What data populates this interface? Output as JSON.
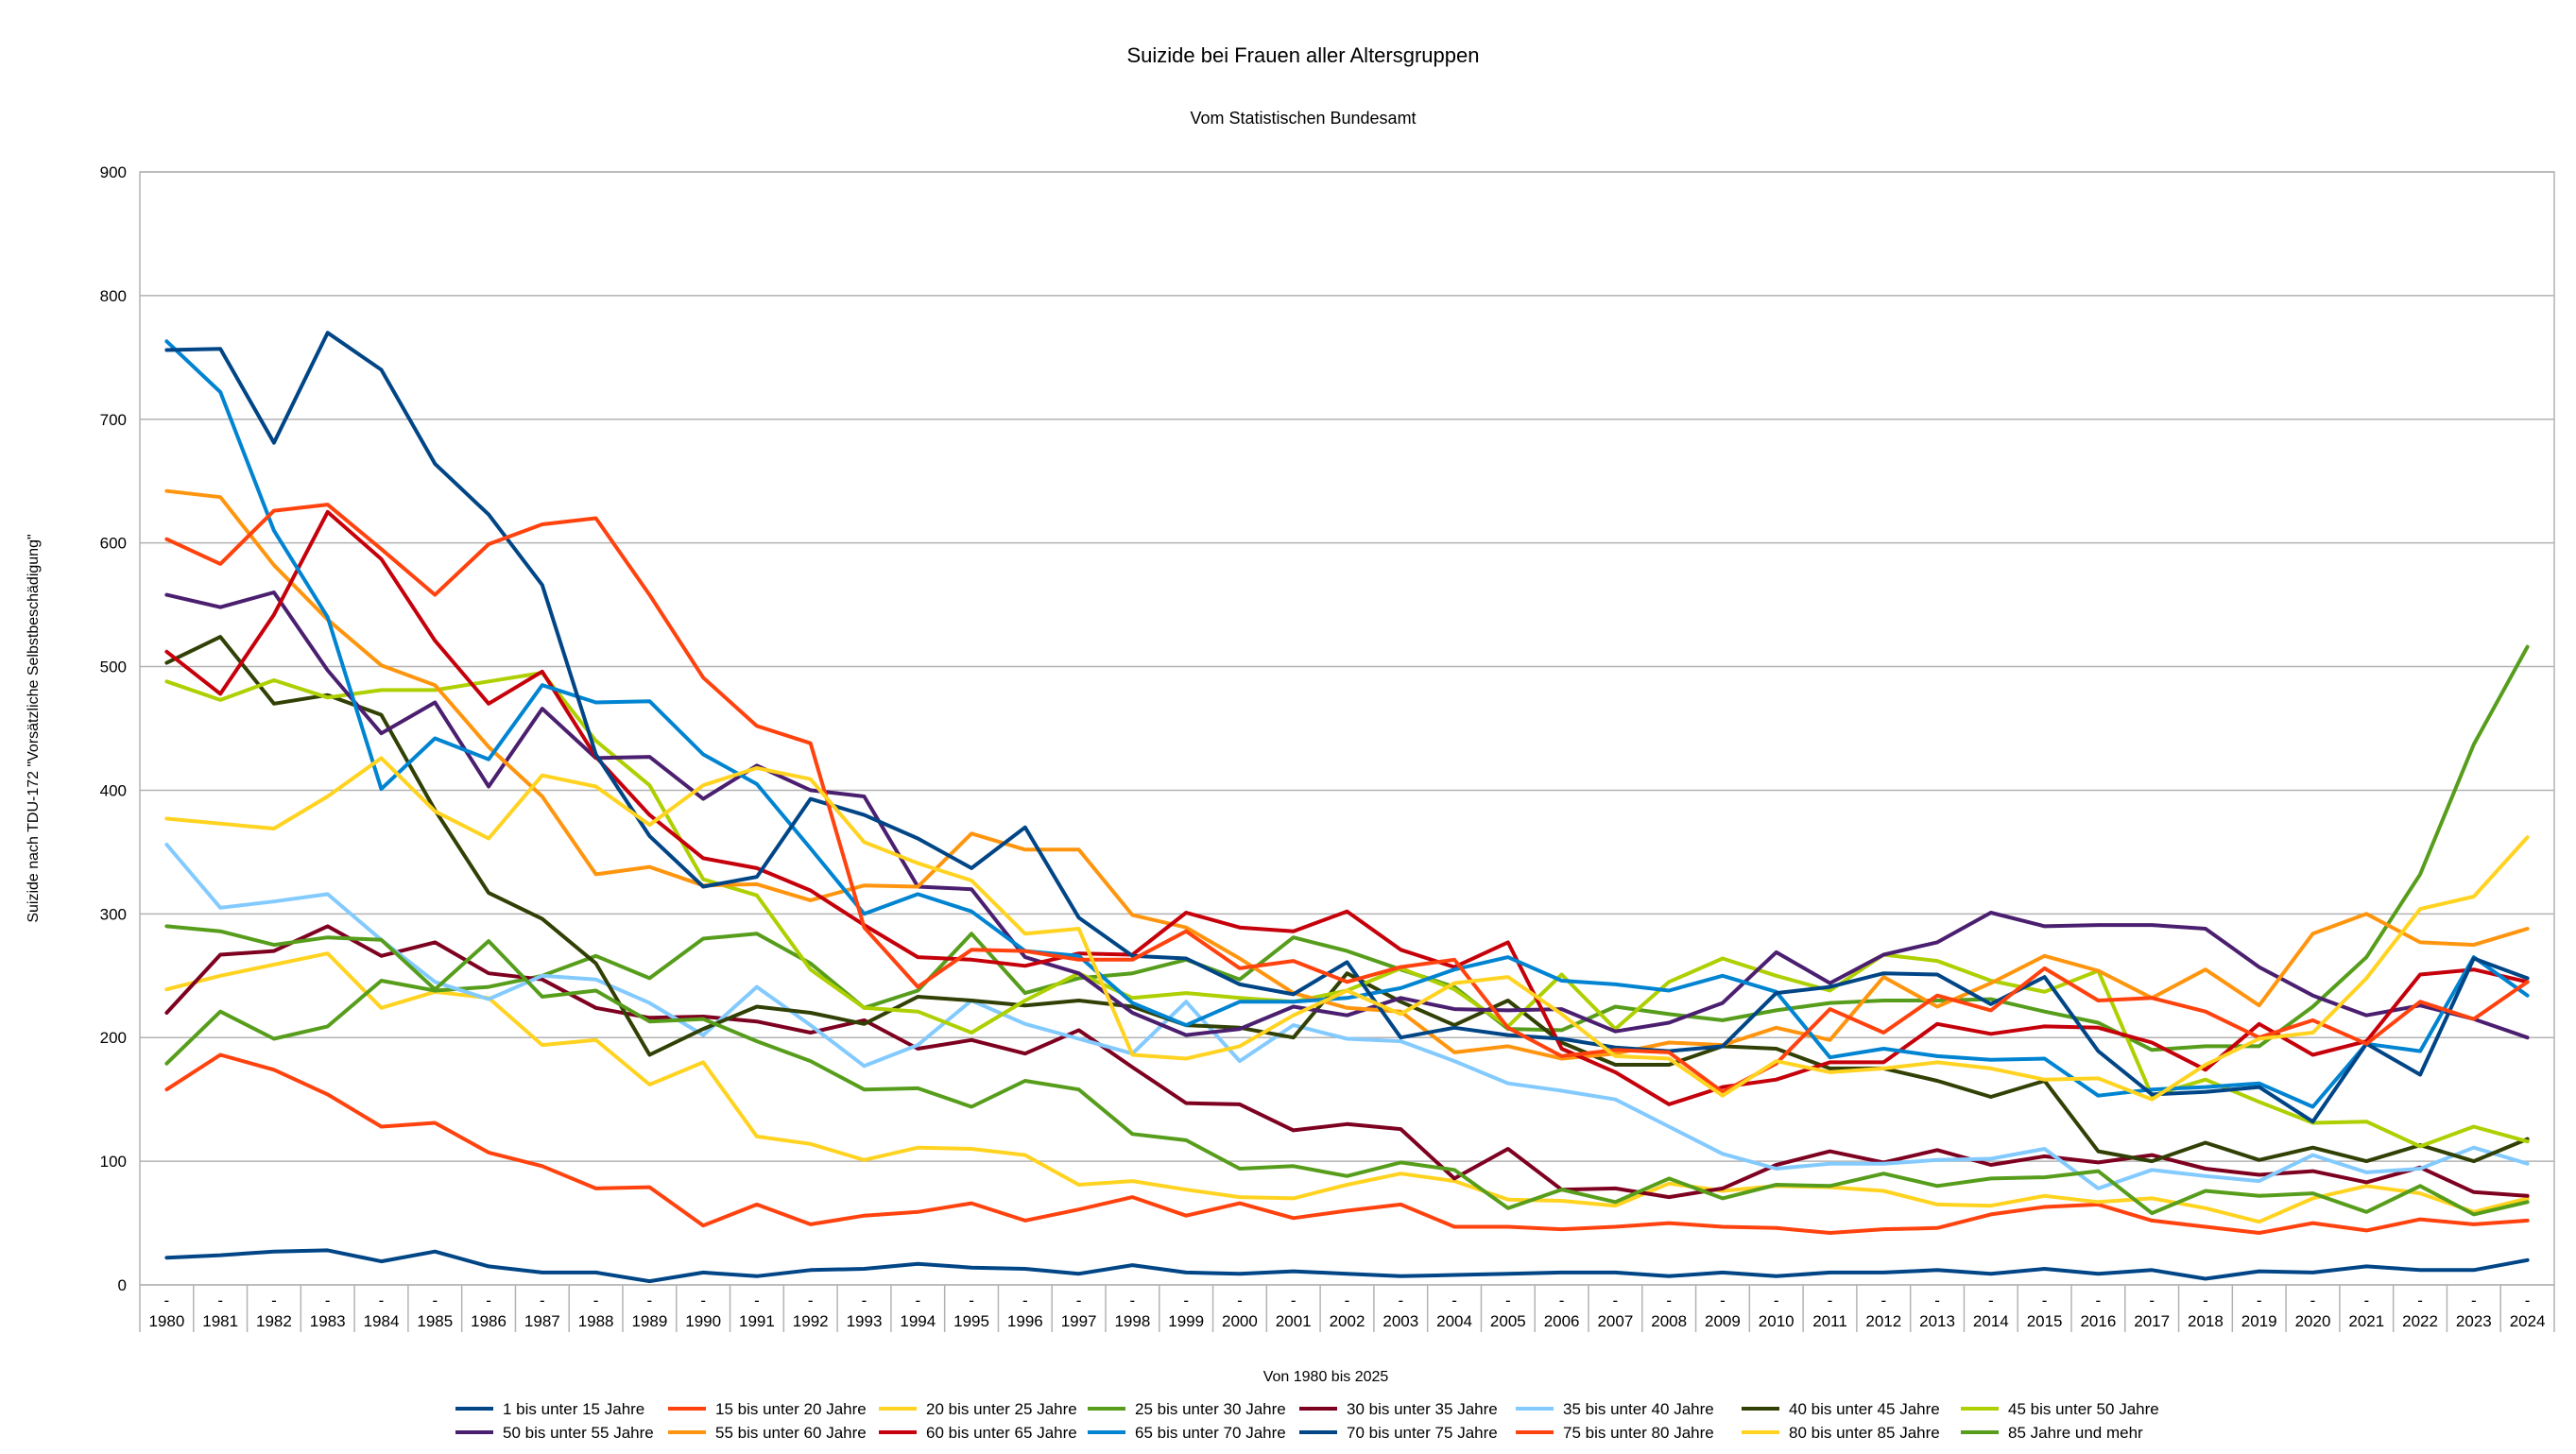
{
  "chart_data": {
    "type": "line",
    "title": "Suizide bei Frauen aller Altersgruppen",
    "subtitle": "Vom Statistischen Bundesamt",
    "xlabel": "Von 1980 bis 2025",
    "ylabel": "Suizide nach TDU-172 \"Vorsätzliche Selbstbeschädigung\"",
    "ylim": [
      0,
      900
    ],
    "yticks": [
      "0",
      "100",
      "200",
      "300",
      "400",
      "500",
      "600",
      "700",
      "800",
      "900"
    ],
    "grid": true,
    "legend": "bottom",
    "categories": [
      "1980",
      "1981",
      "1982",
      "1983",
      "1984",
      "1985",
      "1986",
      "1987",
      "1988",
      "1989",
      "1990",
      "1991",
      "1992",
      "1993",
      "1994",
      "1995",
      "1996",
      "1997",
      "1998",
      "1999",
      "2000",
      "2001",
      "2002",
      "2003",
      "2004",
      "2005",
      "2006",
      "2007",
      "2008",
      "2009",
      "2010",
      "2011",
      "2012",
      "2013",
      "2014",
      "2015",
      "2016",
      "2017",
      "2018",
      "2019",
      "2020",
      "2021",
      "2022",
      "2023",
      "2024"
    ],
    "category_marker": "-",
    "series": [
      {
        "name": "1 bis unter 15 Jahre",
        "color": "#004586",
        "values": [
          22,
          24,
          27,
          28,
          19,
          27,
          15,
          10,
          10,
          3,
          10,
          7,
          12,
          13,
          17,
          14,
          13,
          9,
          16,
          10,
          9,
          11,
          9,
          7,
          8,
          9,
          10,
          10,
          7,
          10,
          7,
          10,
          10,
          12,
          9,
          13,
          9,
          12,
          5,
          11,
          10,
          15,
          12,
          12,
          20
        ]
      },
      {
        "name": "15 bis unter 20 Jahre",
        "color": "#ff420e",
        "values": [
          158,
          186,
          174,
          154,
          128,
          131,
          107,
          96,
          78,
          79,
          48,
          65,
          49,
          56,
          59,
          66,
          52,
          61,
          71,
          56,
          66,
          54,
          60,
          65,
          47,
          47,
          45,
          47,
          50,
          47,
          46,
          42,
          45,
          46,
          57,
          63,
          65,
          52,
          47,
          42,
          50,
          44,
          53,
          49,
          52
        ]
      },
      {
        "name": "20 bis unter 25 Jahre",
        "color": "#ffd320",
        "values": [
          239,
          250,
          259,
          268,
          224,
          237,
          232,
          194,
          198,
          162,
          180,
          120,
          114,
          101,
          111,
          110,
          105,
          81,
          84,
          77,
          71,
          70,
          81,
          90,
          84,
          69,
          68,
          64,
          82,
          76,
          80,
          79,
          76,
          65,
          64,
          72,
          67,
          70,
          62,
          51,
          70,
          80,
          74,
          59,
          70
        ]
      },
      {
        "name": "25 bis unter 30 Jahre",
        "color": "#579d1c",
        "values": [
          179,
          221,
          199,
          209,
          246,
          238,
          241,
          250,
          266,
          248,
          280,
          284,
          260,
          224,
          238,
          284,
          236,
          248,
          252,
          263,
          247,
          281,
          270,
          255,
          241,
          207,
          206,
          225,
          219,
          214,
          222,
          228,
          230,
          230,
          231,
          221,
          212,
          190,
          193,
          193,
          225,
          265,
          332,
          437,
          516
        ]
      },
      {
        "name": "30 bis unter 35 Jahre",
        "color": "#7e0021",
        "values": [
          220,
          267,
          270,
          290,
          266,
          277,
          252,
          247,
          224,
          216,
          217,
          213,
          204,
          214,
          191,
          198,
          187,
          206,
          176,
          147,
          146,
          125,
          130,
          126,
          86,
          110,
          77,
          78,
          71,
          78,
          97,
          108,
          99,
          109,
          97,
          104,
          99,
          105,
          94,
          89,
          92,
          83,
          95,
          75,
          72
        ]
      },
      {
        "name": "35 bis unter 40 Jahre",
        "color": "#83caff",
        "values": [
          356,
          305,
          310,
          316,
          279,
          245,
          231,
          250,
          247,
          228,
          202,
          241,
          210,
          177,
          194,
          230,
          211,
          199,
          187,
          229,
          181,
          210,
          199,
          197,
          181,
          163,
          157,
          150,
          128,
          106,
          94,
          98,
          98,
          101,
          102,
          110,
          78,
          93,
          88,
          84,
          105,
          91,
          94,
          111,
          98
        ]
      },
      {
        "name": "40 bis unter 45 Jahre",
        "color": "#314004",
        "values": [
          503,
          524,
          470,
          477,
          461,
          384,
          317,
          296,
          260,
          186,
          207,
          225,
          220,
          211,
          233,
          230,
          226,
          230,
          225,
          210,
          208,
          200,
          252,
          229,
          210,
          230,
          196,
          178,
          178,
          193,
          191,
          175,
          175,
          165,
          152,
          165,
          108,
          100,
          115,
          101,
          111,
          100,
          113,
          100,
          118
        ]
      },
      {
        "name": "45 bis unter 50 Jahre",
        "color": "#aecf00",
        "values": [
          488,
          473,
          489,
          475,
          481,
          481,
          488,
          495,
          440,
          404,
          328,
          315,
          255,
          224,
          221,
          204,
          230,
          252,
          232,
          236,
          232,
          229,
          238,
          256,
          239,
          209,
          251,
          207,
          245,
          264,
          250,
          238,
          267,
          262,
          246,
          237,
          254,
          153,
          166,
          148,
          131,
          132,
          112,
          128,
          116
        ]
      },
      {
        "name": "50 bis unter 55 Jahre",
        "color": "#4b1f6f",
        "values": [
          558,
          548,
          560,
          497,
          446,
          471,
          403,
          466,
          426,
          427,
          393,
          420,
          400,
          395,
          322,
          320,
          265,
          252,
          220,
          202,
          207,
          225,
          218,
          232,
          223,
          222,
          223,
          205,
          212,
          228,
          269,
          244,
          267,
          277,
          301,
          290,
          291,
          291,
          288,
          257,
          234,
          218,
          226,
          215,
          200
        ]
      },
      {
        "name": "55 bis unter 60 Jahre",
        "color": "#ff950e",
        "values": [
          642,
          637,
          582,
          538,
          501,
          485,
          435,
          395,
          332,
          338,
          323,
          324,
          311,
          323,
          322,
          365,
          352,
          352,
          299,
          289,
          264,
          236,
          224,
          221,
          188,
          193,
          183,
          187,
          196,
          194,
          208,
          198,
          249,
          225,
          244,
          266,
          254,
          232,
          255,
          226,
          284,
          300,
          277,
          275,
          288
        ]
      },
      {
        "name": "60 bis unter 65 Jahre",
        "color": "#c5000b",
        "values": [
          512,
          478,
          542,
          625,
          587,
          521,
          470,
          496,
          427,
          380,
          345,
          337,
          319,
          291,
          265,
          263,
          258,
          268,
          267,
          301,
          289,
          286,
          302,
          271,
          257,
          277,
          191,
          172,
          146,
          160,
          166,
          180,
          180,
          211,
          203,
          209,
          208,
          196,
          174,
          211,
          186,
          197,
          251,
          255,
          245
        ]
      },
      {
        "name": "65 bis unter 70 Jahre",
        "color": "#0084d1",
        "values": [
          763,
          722,
          610,
          540,
          401,
          442,
          425,
          485,
          471,
          472,
          429,
          405,
          353,
          300,
          316,
          302,
          270,
          266,
          228,
          210,
          229,
          229,
          232,
          240,
          255,
          265,
          246,
          243,
          238,
          250,
          237,
          184,
          191,
          185,
          182,
          183,
          153,
          158,
          160,
          163,
          144,
          195,
          189,
          265,
          234
        ]
      },
      {
        "name": "70 bis unter 75 Jahre",
        "color": "#004586",
        "values": [
          756,
          757,
          681,
          770,
          740,
          664,
          623,
          566,
          429,
          363,
          322,
          330,
          393,
          380,
          361,
          337,
          370,
          297,
          266,
          264,
          243,
          235,
          261,
          200,
          208,
          202,
          199,
          192,
          189,
          193,
          236,
          241,
          252,
          251,
          227,
          249,
          189,
          154,
          156,
          160,
          132,
          195,
          170,
          264,
          248
        ]
      },
      {
        "name": "75 bis unter 80 Jahre",
        "color": "#ff420e",
        "values": [
          603,
          583,
          626,
          631,
          595,
          558,
          599,
          615,
          620,
          558,
          491,
          452,
          438,
          289,
          241,
          271,
          270,
          263,
          263,
          286,
          256,
          262,
          245,
          257,
          263,
          208,
          185,
          190,
          188,
          156,
          179,
          223,
          204,
          234,
          222,
          256,
          230,
          232,
          221,
          200,
          214,
          195,
          229,
          215,
          245
        ]
      },
      {
        "name": "80 bis unter 85 Jahre",
        "color": "#ffd320",
        "values": [
          377,
          373,
          369,
          395,
          426,
          383,
          361,
          412,
          403,
          372,
          404,
          418,
          409,
          358,
          341,
          327,
          284,
          288,
          186,
          183,
          193,
          218,
          238,
          219,
          244,
          249,
          219,
          185,
          183,
          153,
          181,
          172,
          175,
          180,
          175,
          166,
          167,
          150,
          178,
          199,
          204,
          248,
          304,
          314,
          362
        ]
      },
      {
        "name": "85 Jahre und mehr",
        "color": "#579d1c",
        "values": [
          290,
          286,
          275,
          281,
          279,
          239,
          278,
          233,
          238,
          213,
          215,
          197,
          181,
          158,
          159,
          144,
          165,
          158,
          122,
          117,
          94,
          96,
          88,
          99,
          93,
          62,
          77,
          67,
          86,
          70,
          81,
          80,
          90,
          80,
          86,
          87,
          92,
          58,
          76,
          72,
          74,
          59,
          80,
          57,
          67
        ]
      }
    ]
  }
}
